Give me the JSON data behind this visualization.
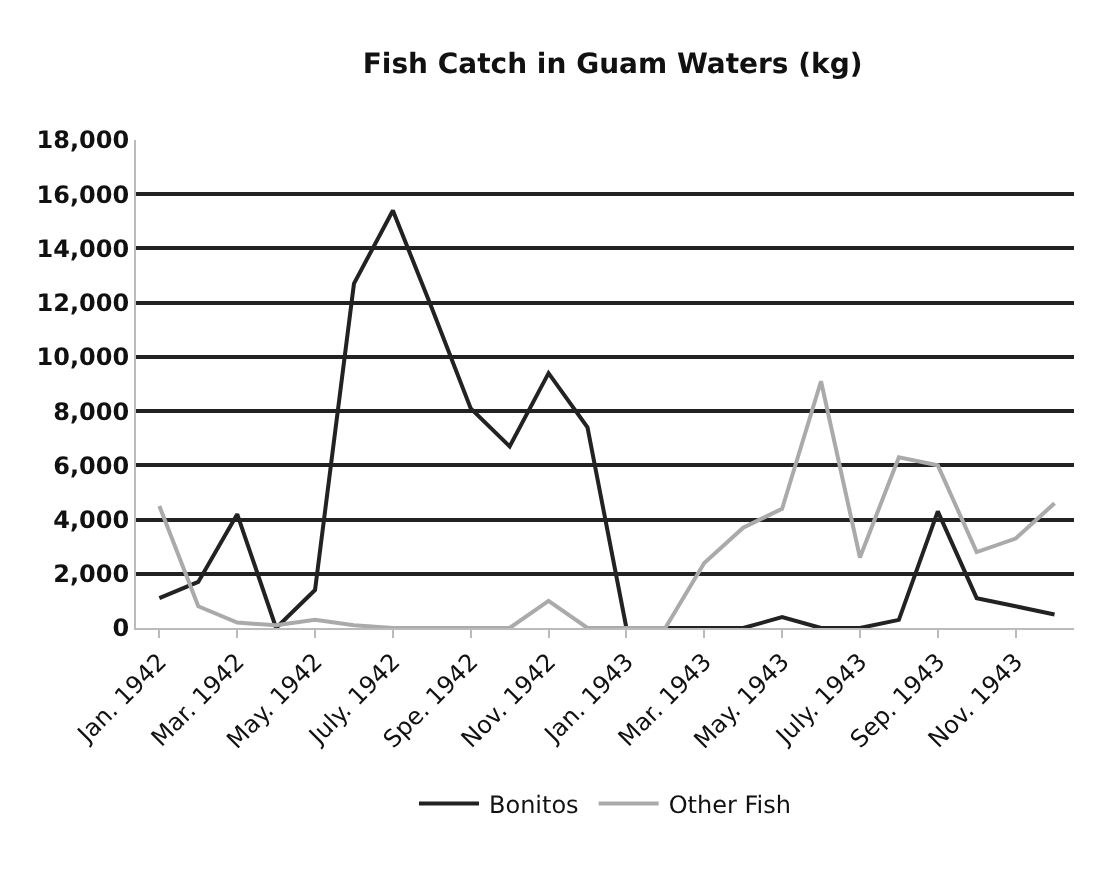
{
  "chart_data": {
    "type": "line",
    "title": "Fish Catch in Guam Waters (kg)",
    "categories": [
      "Jan. 1942",
      null,
      "Mar. 1942",
      null,
      "May. 1942",
      null,
      "July. 1942",
      null,
      "Spe. 1942",
      null,
      "Nov. 1942",
      null,
      "Jan. 1943",
      null,
      "Mar. 1943",
      null,
      "May. 1943",
      null,
      "July. 1943",
      null,
      "Sep. 1943",
      null,
      "Nov. 1943",
      null
    ],
    "series": [
      {
        "name": "Bonitos",
        "color": "#222222",
        "values": [
          1100,
          1700,
          4200,
          0,
          1400,
          12700,
          15400,
          11800,
          8100,
          6700,
          9400,
          7400,
          0,
          0,
          0,
          0,
          400,
          0,
          0,
          300,
          4300,
          1100,
          800,
          500
        ]
      },
      {
        "name": "Other Fish",
        "color": "#aaaaaa",
        "values": [
          4500,
          800,
          200,
          100,
          300,
          100,
          0,
          0,
          0,
          0,
          1000,
          0,
          0,
          0,
          2400,
          3700,
          4400,
          9100,
          2600,
          6300,
          6000,
          2800,
          3300,
          4600
        ]
      }
    ],
    "ylim": [
      0,
      18000
    ],
    "yticks": [
      {
        "value": 0,
        "label": "0"
      },
      {
        "value": 2000,
        "label": "2,000"
      },
      {
        "value": 4000,
        "label": "4,000"
      },
      {
        "value": 6000,
        "label": "6,000"
      },
      {
        "value": 8000,
        "label": "8,000"
      },
      {
        "value": 10000,
        "label": "10,000"
      },
      {
        "value": 12000,
        "label": "12,000"
      },
      {
        "value": 14000,
        "label": "14,000"
      },
      {
        "value": 16000,
        "label": "16,000"
      },
      {
        "value": 18000,
        "label": "18,000"
      }
    ],
    "grid": "y",
    "legend": "bottom",
    "marker": "none",
    "line_style": "solid"
  }
}
